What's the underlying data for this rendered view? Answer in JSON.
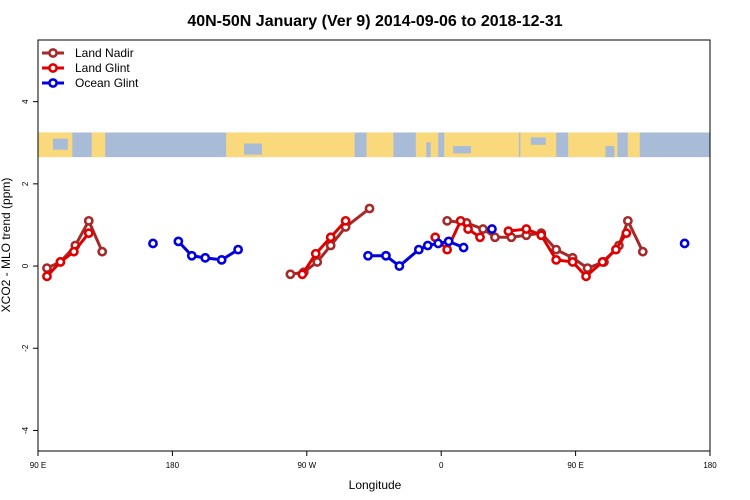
{
  "chart_data": {
    "type": "line",
    "title": "40N-50N January (Ver 9)   2014-09-06 to 2018-12-31",
    "xlabel": "Longitude",
    "ylabel": "XCO2 - MLO trend (ppm)",
    "xlim": [
      90,
      540
    ],
    "ylim": [
      -4.5,
      5.5
    ],
    "x_ticks": [
      {
        "value": 90,
        "label": "90 E"
      },
      {
        "value": 180,
        "label": "180"
      },
      {
        "value": 270,
        "label": "90 W"
      },
      {
        "value": 360,
        "label": "0"
      },
      {
        "value": 450,
        "label": "90 E"
      },
      {
        "value": 540,
        "label": "180"
      }
    ],
    "y_ticks": [
      {
        "value": -4,
        "label": "-4"
      },
      {
        "value": -2,
        "label": "-2"
      },
      {
        "value": 0,
        "label": "0"
      },
      {
        "value": 2,
        "label": "2"
      },
      {
        "value": 4,
        "label": "4"
      }
    ],
    "legend_position": "top-left",
    "grid": false,
    "map_band": {
      "y_range": [
        2.65,
        3.25
      ],
      "ocean_color": "#a8bcd8",
      "land_color": "#f9d97c"
    },
    "series": [
      {
        "name": "Land Nadir",
        "color": "#a52a2a",
        "segments": [
          [
            [
              96,
              -0.05
            ],
            [
              105,
              0.1
            ],
            [
              115,
              0.5
            ],
            [
              124,
              1.1
            ],
            [
              133,
              0.35
            ]
          ],
          [
            [
              259,
              -0.2
            ],
            [
              268,
              -0.15
            ],
            [
              277,
              0.1
            ],
            [
              286,
              0.5
            ],
            [
              296,
              0.95
            ],
            [
              312,
              1.4
            ]
          ],
          [
            [
              364,
              1.1
            ],
            [
              377,
              1.05
            ],
            [
              388,
              0.9
            ],
            [
              396,
              0.7
            ],
            [
              407,
              0.7
            ],
            [
              417,
              0.75
            ],
            [
              427,
              0.8
            ],
            [
              437,
              0.4
            ],
            [
              448,
              0.2
            ],
            [
              458,
              -0.05
            ],
            [
              469,
              0.1
            ],
            [
              479,
              0.5
            ],
            [
              485,
              1.1
            ],
            [
              495,
              0.35
            ]
          ]
        ]
      },
      {
        "name": "Land Glint",
        "color": "#e00000",
        "segments": [
          [
            [
              96,
              -0.25
            ],
            [
              105,
              0.1
            ],
            [
              114,
              0.35
            ],
            [
              124,
              0.8
            ]
          ],
          [
            [
              267,
              -0.2
            ],
            [
              276,
              0.3
            ],
            [
              286,
              0.7
            ],
            [
              296,
              1.1
            ]
          ],
          [
            [
              356,
              0.7
            ],
            [
              364,
              0.4
            ],
            [
              373,
              1.1
            ],
            [
              378,
              0.9
            ],
            [
              386,
              0.7
            ]
          ],
          [
            [
              405,
              0.85
            ],
            [
              417,
              0.9
            ],
            [
              427,
              0.75
            ],
            [
              437,
              0.15
            ],
            [
              448,
              0.1
            ],
            [
              457,
              -0.25
            ],
            [
              468,
              0.1
            ],
            [
              477,
              0.4
            ],
            [
              484,
              0.8
            ]
          ]
        ]
      },
      {
        "name": "Ocean Glint",
        "color": "#0000e0",
        "segments": [
          [
            [
              167,
              0.55
            ]
          ],
          [
            [
              184,
              0.6
            ],
            [
              193,
              0.25
            ],
            [
              202,
              0.2
            ],
            [
              213,
              0.15
            ],
            [
              224,
              0.4
            ]
          ],
          [
            [
              311,
              0.25
            ],
            [
              323,
              0.25
            ],
            [
              332,
              0.0
            ],
            [
              345,
              0.4
            ],
            [
              351,
              0.5
            ],
            [
              358,
              0.55
            ],
            [
              365,
              0.6
            ],
            [
              375,
              0.45
            ]
          ],
          [
            [
              394,
              0.9
            ]
          ],
          [
            [
              523,
              0.55
            ]
          ]
        ]
      }
    ]
  }
}
